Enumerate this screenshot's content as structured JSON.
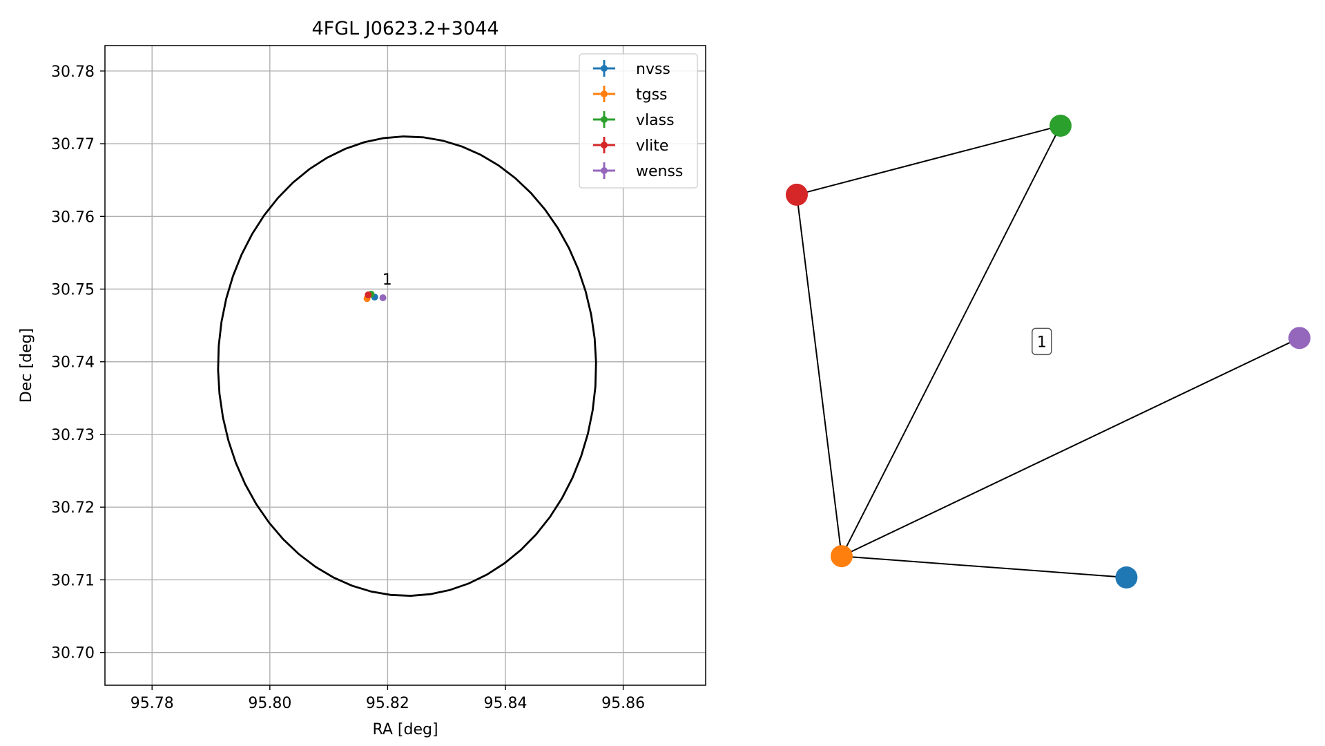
{
  "chart_data": [
    {
      "type": "scatter",
      "title": "4FGL J0623.2+3044",
      "xlabel": "RA [deg]",
      "ylabel": "Dec [deg]",
      "xlim": [
        95.772,
        95.874
      ],
      "ylim": [
        30.6955,
        30.7835
      ],
      "xticks": [
        95.78,
        95.8,
        95.82,
        95.84,
        95.86
      ],
      "xtick_labels": [
        "95.78",
        "95.80",
        "95.82",
        "95.84",
        "95.86"
      ],
      "yticks": [
        30.7,
        30.71,
        30.72,
        30.73,
        30.74,
        30.75,
        30.76,
        30.77,
        30.78
      ],
      "ytick_labels": [
        "30.70",
        "30.71",
        "30.72",
        "30.73",
        "30.74",
        "30.75",
        "30.76",
        "30.77",
        "30.78"
      ],
      "grid": true,
      "legend_position": "top-right",
      "ellipse": {
        "center_ra": 95.8233,
        "center_dec": 30.7394,
        "semi_major_axis": 0.0321,
        "semi_minor_axis": 0.0316,
        "rotation_deg": -5,
        "color": "#000000"
      },
      "series": [
        {
          "name": "nvss",
          "color": "#1f77b4",
          "points": [
            {
              "x": 95.8178,
              "y": 30.7489
            }
          ]
        },
        {
          "name": "tgss",
          "color": "#ff7f0e",
          "points": [
            {
              "x": 95.8165,
              "y": 30.7487
            }
          ]
        },
        {
          "name": "vlass",
          "color": "#2ca02c",
          "points": [
            {
              "x": 95.8172,
              "y": 30.7493
            }
          ]
        },
        {
          "name": "vlite",
          "color": "#d62728",
          "points": [
            {
              "x": 95.8167,
              "y": 30.7492
            }
          ]
        },
        {
          "name": "wenss",
          "color": "#9467bd",
          "points": [
            {
              "x": 95.8192,
              "y": 30.7488
            }
          ]
        }
      ],
      "annotations": [
        {
          "text": "1",
          "x": 95.8191,
          "y": 30.7506
        }
      ]
    },
    {
      "type": "network",
      "nodes": [
        {
          "id": "vlass",
          "color": "#2ca02c",
          "x": 1.0,
          "y": 1.0
        },
        {
          "id": "vlite",
          "color": "#d62728",
          "x": 0.0,
          "y": 0.802
        },
        {
          "id": "wenss",
          "color": "#9467bd",
          "x": 1.906,
          "y": 0.391
        },
        {
          "id": "tgss",
          "color": "#ff7f0e",
          "x": 0.17,
          "y": -0.235
        },
        {
          "id": "nvss",
          "color": "#1f77b4",
          "x": 1.25,
          "y": -0.296
        }
      ],
      "edges": [
        [
          "vlite",
          "vlass"
        ],
        [
          "vlass",
          "tgss"
        ],
        [
          "vlite",
          "tgss"
        ],
        [
          "tgss",
          "wenss"
        ],
        [
          "tgss",
          "nvss"
        ]
      ],
      "label": {
        "text": "1",
        "x": 0.929,
        "y": 0.381
      }
    }
  ]
}
